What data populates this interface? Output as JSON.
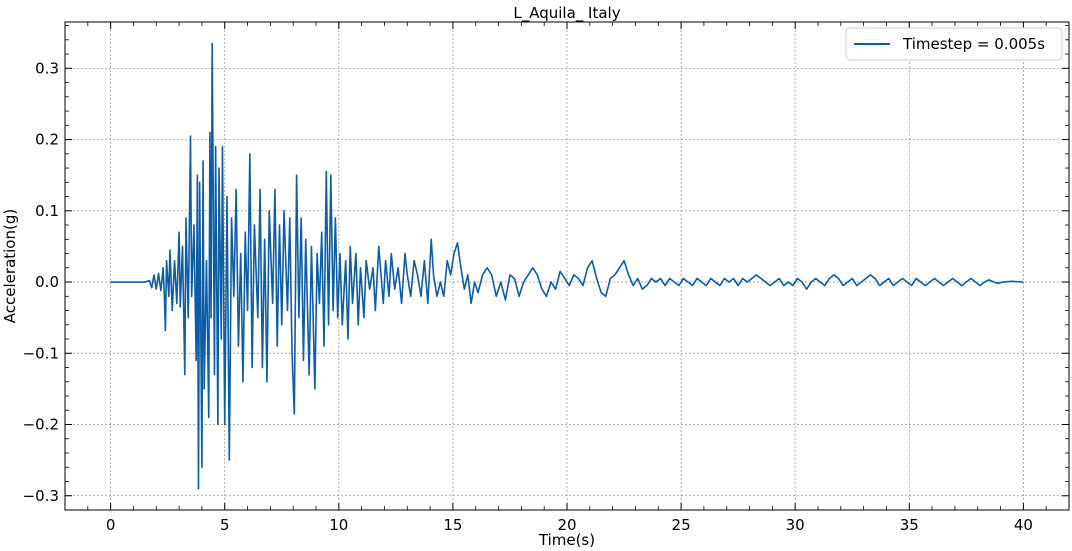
{
  "chart_data": {
    "type": "line",
    "title": "L_Aquila_ Italy",
    "xlabel": "Time(s)",
    "ylabel": "Acceleration(g)",
    "xlim": [
      -2,
      42
    ],
    "ylim": [
      -0.32,
      0.365
    ],
    "xticks": [
      0,
      5,
      10,
      15,
      20,
      25,
      30,
      35,
      40
    ],
    "xtick_labels": [
      "0",
      "5",
      "10",
      "15",
      "20",
      "25",
      "30",
      "35",
      "40"
    ],
    "yticks": [
      -0.3,
      -0.2,
      -0.1,
      0.0,
      0.1,
      0.2,
      0.3
    ],
    "ytick_labels": [
      "−0.3",
      "−0.2",
      "−0.1",
      "0.0",
      "0.1",
      "0.2",
      "0.3"
    ],
    "grid": true,
    "legend_position": "top-right",
    "series": [
      {
        "name": "Timestep = 0.005s",
        "color": "#0c5da5",
        "points": [
          [
            0,
            0
          ],
          [
            1.5,
            0
          ],
          [
            1.7,
            0.002
          ],
          [
            1.8,
            -0.008
          ],
          [
            1.9,
            0.01
          ],
          [
            2.0,
            -0.01
          ],
          [
            2.1,
            0.012
          ],
          [
            2.2,
            -0.012
          ],
          [
            2.3,
            0.02
          ],
          [
            2.35,
            -0.015
          ],
          [
            2.4,
            -0.068
          ],
          [
            2.45,
            0.03
          ],
          [
            2.55,
            -0.02
          ],
          [
            2.6,
            0.045
          ],
          [
            2.7,
            -0.04
          ],
          [
            2.8,
            0.03
          ],
          [
            2.9,
            -0.03
          ],
          [
            3.0,
            0.07
          ],
          [
            3.05,
            -0.035
          ],
          [
            3.15,
            0.05
          ],
          [
            3.25,
            -0.13
          ],
          [
            3.3,
            0.09
          ],
          [
            3.4,
            -0.05
          ],
          [
            3.5,
            0.205
          ],
          [
            3.55,
            -0.02
          ],
          [
            3.65,
            0.08
          ],
          [
            3.75,
            -0.11
          ],
          [
            3.8,
            0.15
          ],
          [
            3.85,
            -0.29
          ],
          [
            3.9,
            0.14
          ],
          [
            4.0,
            -0.26
          ],
          [
            4.05,
            0.17
          ],
          [
            4.1,
            -0.15
          ],
          [
            4.2,
            0.03
          ],
          [
            4.3,
            -0.19
          ],
          [
            4.35,
            0.21
          ],
          [
            4.4,
            -0.05
          ],
          [
            4.45,
            0.335
          ],
          [
            4.55,
            -0.13
          ],
          [
            4.6,
            0.19
          ],
          [
            4.7,
            -0.2
          ],
          [
            4.75,
            0.16
          ],
          [
            4.85,
            -0.08
          ],
          [
            4.9,
            0.19
          ],
          [
            5.0,
            -0.2
          ],
          [
            5.1,
            0.12
          ],
          [
            5.2,
            -0.25
          ],
          [
            5.3,
            0.09
          ],
          [
            5.4,
            -0.02
          ],
          [
            5.5,
            0.13
          ],
          [
            5.6,
            -0.09
          ],
          [
            5.7,
            0.04
          ],
          [
            5.8,
            -0.14
          ],
          [
            5.9,
            0.07
          ],
          [
            6.0,
            -0.04
          ],
          [
            6.1,
            0.18
          ],
          [
            6.2,
            -0.12
          ],
          [
            6.3,
            0.08
          ],
          [
            6.45,
            -0.05
          ],
          [
            6.55,
            0.13
          ],
          [
            6.65,
            -0.12
          ],
          [
            6.75,
            0.06
          ],
          [
            6.85,
            -0.14
          ],
          [
            6.95,
            0.1
          ],
          [
            7.1,
            -0.03
          ],
          [
            7.2,
            0.13
          ],
          [
            7.3,
            -0.09
          ],
          [
            7.4,
            0.08
          ],
          [
            7.5,
            -0.06
          ],
          [
            7.6,
            0.1
          ],
          [
            7.75,
            -0.04
          ],
          [
            7.85,
            0.09
          ],
          [
            7.95,
            -0.1
          ],
          [
            8.05,
            -0.185
          ],
          [
            8.15,
            0.15
          ],
          [
            8.25,
            -0.05
          ],
          [
            8.35,
            0.09
          ],
          [
            8.45,
            -0.11
          ],
          [
            8.55,
            0.06
          ],
          [
            8.7,
            -0.13
          ],
          [
            8.8,
            0.05
          ],
          [
            8.95,
            -0.15
          ],
          [
            9.05,
            0.04
          ],
          [
            9.15,
            -0.03
          ],
          [
            9.25,
            0.07
          ],
          [
            9.35,
            -0.09
          ],
          [
            9.45,
            0.155
          ],
          [
            9.55,
            -0.06
          ],
          [
            9.65,
            0.15
          ],
          [
            9.75,
            -0.04
          ],
          [
            9.85,
            0.09
          ],
          [
            9.95,
            -0.05
          ],
          [
            10.05,
            0.04
          ],
          [
            10.15,
            -0.06
          ],
          [
            10.3,
            0.03
          ],
          [
            10.4,
            -0.08
          ],
          [
            10.5,
            0.05
          ],
          [
            10.6,
            -0.03
          ],
          [
            10.75,
            0.04
          ],
          [
            10.85,
            -0.06
          ],
          [
            10.95,
            0.02
          ],
          [
            11.1,
            -0.05
          ],
          [
            11.2,
            0.03
          ],
          [
            11.35,
            -0.01
          ],
          [
            11.5,
            0.02
          ],
          [
            11.6,
            -0.04
          ],
          [
            11.75,
            0.05
          ],
          [
            11.85,
            0.01
          ],
          [
            11.95,
            -0.03
          ],
          [
            12.05,
            0.03
          ],
          [
            12.2,
            -0.02
          ],
          [
            12.3,
            0.04
          ],
          [
            12.45,
            -0.01
          ],
          [
            12.6,
            0.02
          ],
          [
            12.75,
            -0.03
          ],
          [
            12.9,
            0.04
          ],
          [
            13.0,
            0.01
          ],
          [
            13.15,
            -0.02
          ],
          [
            13.3,
            0.03
          ],
          [
            13.45,
            0.01
          ],
          [
            13.6,
            -0.02
          ],
          [
            13.75,
            0.03
          ],
          [
            13.9,
            -0.03
          ],
          [
            14.05,
            0.06
          ],
          [
            14.15,
            0.01
          ],
          [
            14.3,
            -0.02
          ],
          [
            14.45,
            0.0
          ],
          [
            14.6,
            -0.02
          ],
          [
            14.75,
            0.03
          ],
          [
            14.9,
            0.01
          ],
          [
            15.05,
            0.04
          ],
          [
            15.2,
            0.055
          ],
          [
            15.35,
            0.02
          ],
          [
            15.5,
            -0.01
          ],
          [
            15.65,
            0.01
          ],
          [
            15.8,
            -0.03
          ],
          [
            15.95,
            0.0
          ],
          [
            16.1,
            -0.015
          ],
          [
            16.3,
            0.01
          ],
          [
            16.5,
            0.02
          ],
          [
            16.7,
            0.01
          ],
          [
            16.9,
            -0.02
          ],
          [
            17.1,
            0.0
          ],
          [
            17.3,
            -0.025
          ],
          [
            17.5,
            0.01
          ],
          [
            17.7,
            0.005
          ],
          [
            17.9,
            -0.02
          ],
          [
            18.1,
            0.0
          ],
          [
            18.3,
            0.01
          ],
          [
            18.5,
            0.02
          ],
          [
            18.7,
            0.01
          ],
          [
            18.9,
            -0.01
          ],
          [
            19.1,
            -0.02
          ],
          [
            19.3,
            0.0
          ],
          [
            19.5,
            -0.01
          ],
          [
            19.7,
            0.015
          ],
          [
            19.9,
            0.005
          ],
          [
            20.1,
            -0.005
          ],
          [
            20.3,
            0.01
          ],
          [
            20.5,
            0.005
          ],
          [
            20.7,
            -0.005
          ],
          [
            20.9,
            0.02
          ],
          [
            21.1,
            0.03
          ],
          [
            21.3,
            0.005
          ],
          [
            21.5,
            -0.015
          ],
          [
            21.7,
            -0.02
          ],
          [
            21.9,
            0.005
          ],
          [
            22.1,
            0.01
          ],
          [
            22.3,
            0.02
          ],
          [
            22.5,
            0.03
          ],
          [
            22.7,
            0.01
          ],
          [
            22.9,
            -0.005
          ],
          [
            23.1,
            0.005
          ],
          [
            23.3,
            -0.01
          ],
          [
            23.5,
            -0.005
          ],
          [
            23.7,
            0.005
          ],
          [
            23.9,
            0.0
          ],
          [
            24.1,
            0.005
          ],
          [
            24.3,
            -0.005
          ],
          [
            24.5,
            0.005
          ],
          [
            24.7,
            0.0
          ],
          [
            24.9,
            -0.005
          ],
          [
            25.1,
            0.005
          ],
          [
            25.3,
            0.0
          ],
          [
            25.5,
            -0.005
          ],
          [
            25.7,
            0.005
          ],
          [
            25.9,
            0.0
          ],
          [
            26.1,
            -0.005
          ],
          [
            26.3,
            0.005
          ],
          [
            26.5,
            0.0
          ],
          [
            26.7,
            -0.005
          ],
          [
            26.9,
            0.005
          ],
          [
            27.1,
            0.0
          ],
          [
            27.3,
            0.005
          ],
          [
            27.5,
            -0.005
          ],
          [
            27.7,
            0.005
          ],
          [
            27.9,
            0.0
          ],
          [
            28.1,
            0.005
          ],
          [
            28.3,
            0.01
          ],
          [
            28.5,
            0.005
          ],
          [
            28.7,
            0.0
          ],
          [
            28.9,
            -0.005
          ],
          [
            29.1,
            0.0
          ],
          [
            29.3,
            0.005
          ],
          [
            29.5,
            -0.005
          ],
          [
            29.7,
            0.0
          ],
          [
            29.9,
            -0.005
          ],
          [
            30.1,
            0.005
          ],
          [
            30.3,
            0.0
          ],
          [
            30.5,
            -0.01
          ],
          [
            30.7,
            0.0
          ],
          [
            30.9,
            0.005
          ],
          [
            31.1,
            0.0
          ],
          [
            31.3,
            -0.005
          ],
          [
            31.5,
            0.005
          ],
          [
            31.7,
            0.01
          ],
          [
            31.9,
            0.005
          ],
          [
            32.1,
            -0.005
          ],
          [
            32.3,
            0.0
          ],
          [
            32.5,
            0.005
          ],
          [
            32.7,
            -0.005
          ],
          [
            32.9,
            0.0
          ],
          [
            33.1,
            0.005
          ],
          [
            33.3,
            0.01
          ],
          [
            33.5,
            0.005
          ],
          [
            33.7,
            -0.005
          ],
          [
            33.9,
            0.0
          ],
          [
            34.1,
            0.005
          ],
          [
            34.3,
            -0.005
          ],
          [
            34.5,
            0.0
          ],
          [
            34.7,
            0.005
          ],
          [
            34.9,
            0.0
          ],
          [
            35.1,
            -0.005
          ],
          [
            35.3,
            0.005
          ],
          [
            35.5,
            0.0
          ],
          [
            35.7,
            -0.005
          ],
          [
            35.9,
            0.0
          ],
          [
            36.1,
            0.005
          ],
          [
            36.3,
            0.0
          ],
          [
            36.5,
            -0.005
          ],
          [
            36.7,
            0.0
          ],
          [
            36.9,
            0.005
          ],
          [
            37.1,
            0.0
          ],
          [
            37.3,
            -0.005
          ],
          [
            37.5,
            0.0
          ],
          [
            37.7,
            0.005
          ],
          [
            37.9,
            0.0
          ],
          [
            38.1,
            -0.005
          ],
          [
            38.3,
            0.0
          ],
          [
            38.5,
            0.003
          ],
          [
            38.7,
            0.0
          ],
          [
            38.9,
            -0.002
          ],
          [
            39.1,
            0.0
          ],
          [
            39.5,
            0.001
          ],
          [
            40,
            0
          ]
        ]
      }
    ]
  }
}
